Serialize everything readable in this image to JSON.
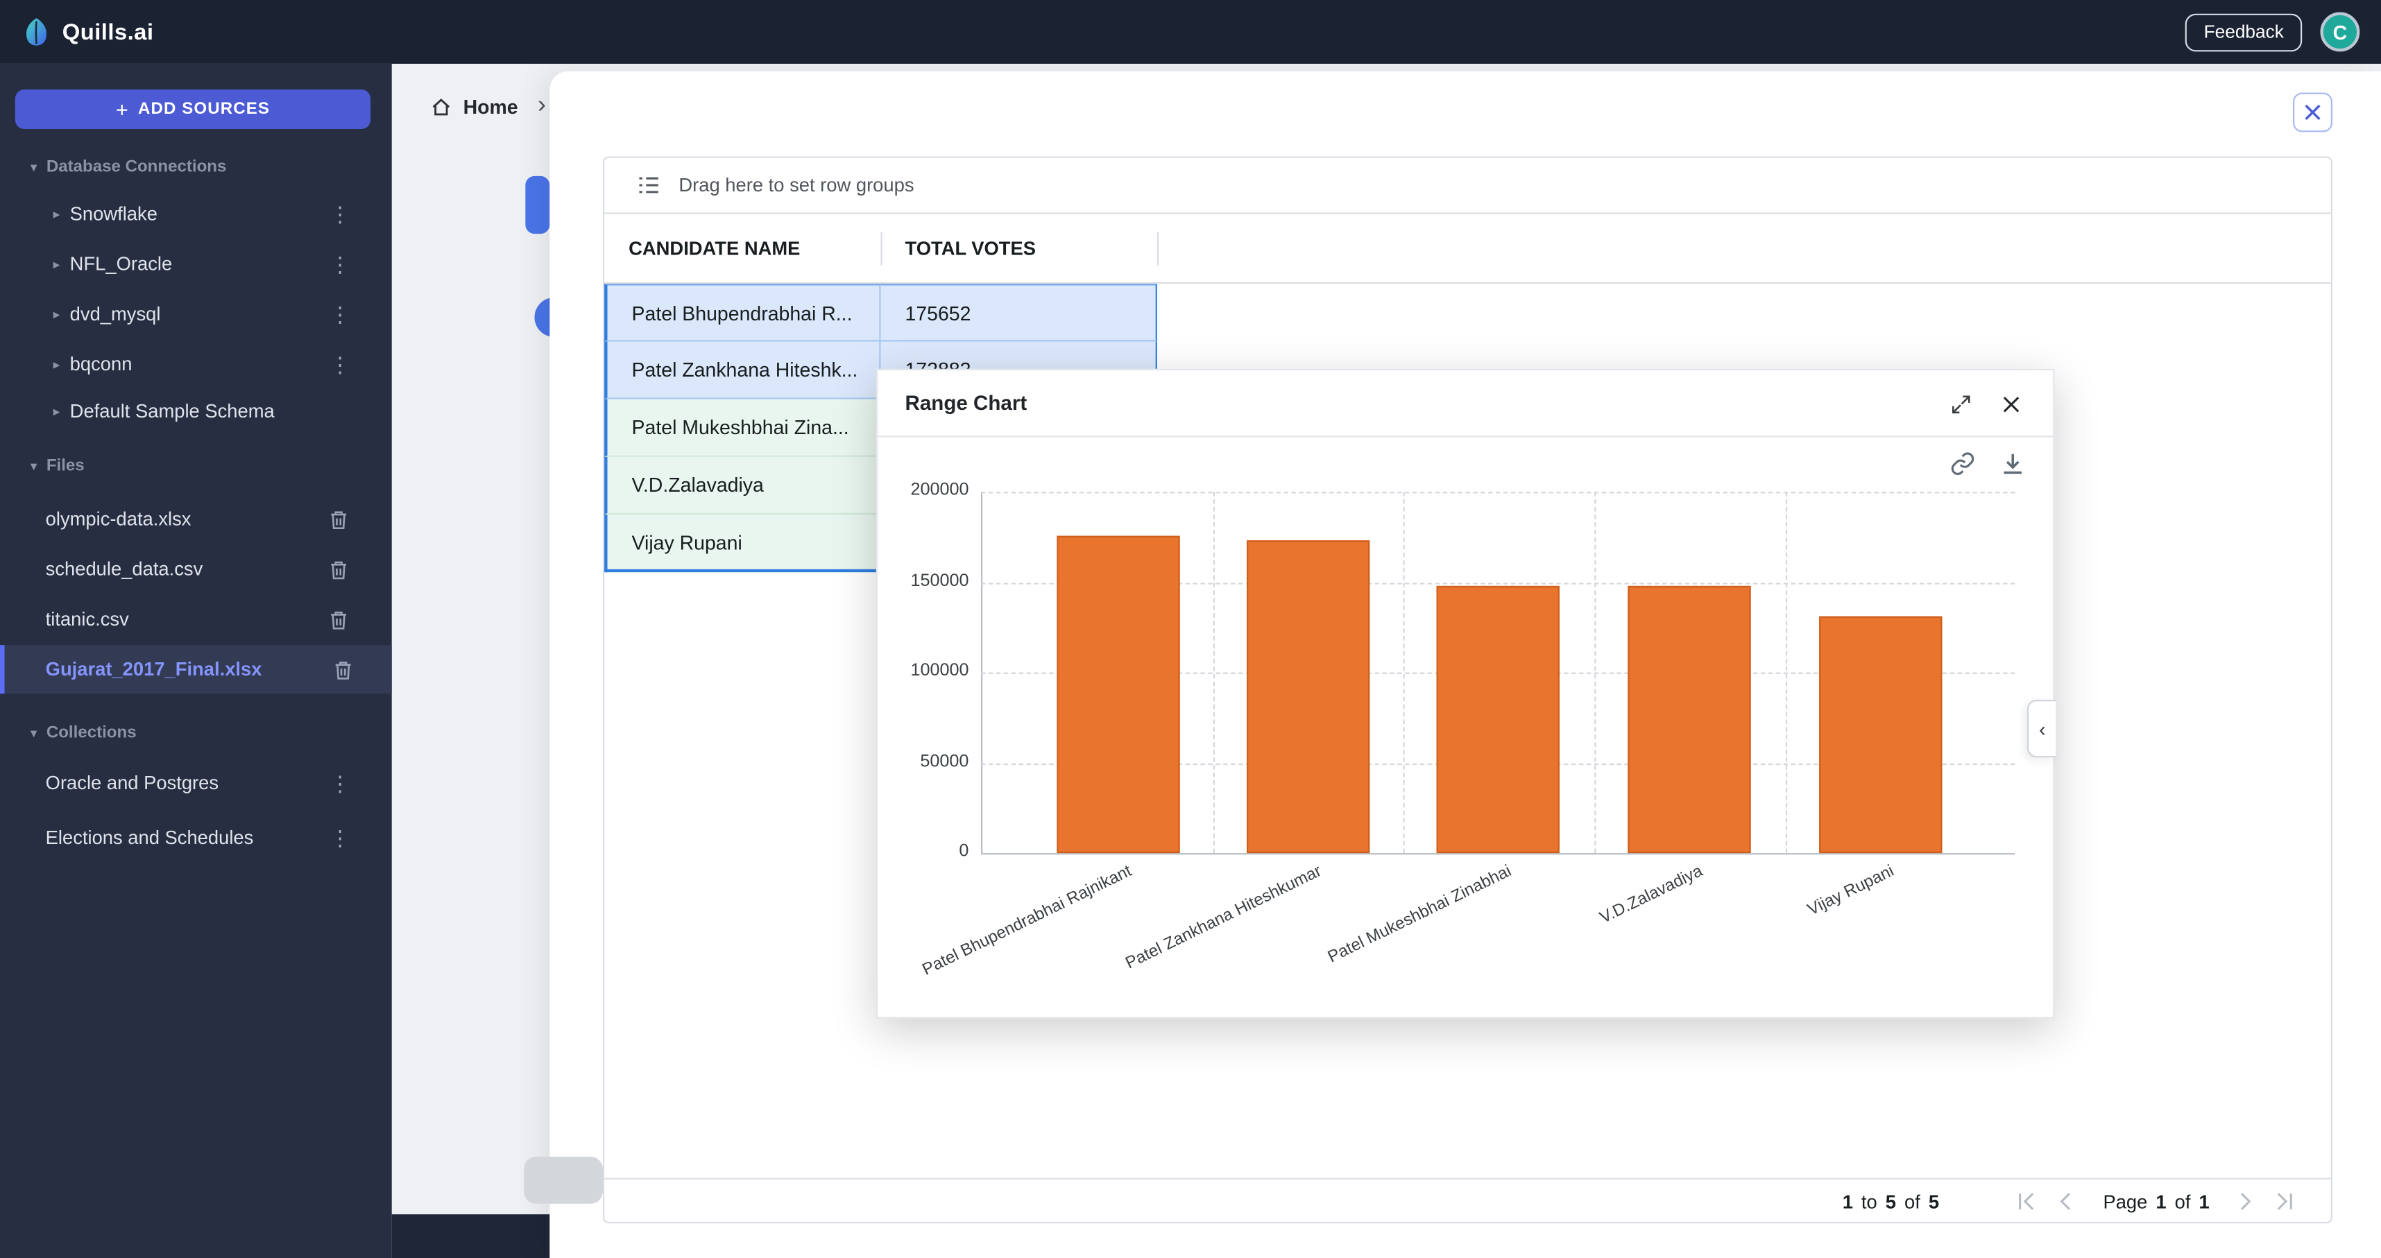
{
  "topbar": {
    "brand": "Quills.ai",
    "feedback_label": "Feedback",
    "avatar_initial": "C"
  },
  "sidebar": {
    "add_sources_label": "ADD SOURCES",
    "sections": [
      {
        "label": "Database Connections",
        "items": [
          {
            "label": "Snowflake"
          },
          {
            "label": "NFL_Oracle"
          },
          {
            "label": "dvd_mysql"
          },
          {
            "label": "bqconn"
          },
          {
            "label": "Default Sample Schema"
          }
        ]
      },
      {
        "label": "Files",
        "items": [
          {
            "label": "olympic-data.xlsx"
          },
          {
            "label": "schedule_data.csv"
          },
          {
            "label": "titanic.csv"
          },
          {
            "label": "Gujarat_2017_Final.xlsx",
            "selected": true
          }
        ]
      },
      {
        "label": "Collections",
        "items": [
          {
            "label": "Oracle and Postgres"
          },
          {
            "label": "Elections and Schedules"
          }
        ]
      }
    ]
  },
  "breadcrumb": {
    "home_label": "Home",
    "chevron": "›"
  },
  "grid": {
    "dropzone_label": "Drag here to set row groups",
    "columns": [
      {
        "label": "CANDIDATE NAME"
      },
      {
        "label": "TOTAL VOTES"
      }
    ],
    "rows": [
      {
        "candidate": "Patel Bhupendrabhai R...",
        "votes": "175652"
      },
      {
        "candidate": "Patel Zankhana Hiteshk...",
        "votes": "172882"
      },
      {
        "candidate": "Patel Mukeshbhai Zina...",
        "votes": ""
      },
      {
        "candidate": "V.D.Zalavadiya",
        "votes": ""
      },
      {
        "candidate": "Vijay Rupani",
        "votes": ""
      }
    ],
    "pagination": {
      "row_start": "1",
      "to_word": "to",
      "row_end": "5",
      "of_word": "of",
      "row_total": "5",
      "page_word": "Page",
      "page_current": "1",
      "page_of_word": "of",
      "page_total": "1"
    }
  },
  "chart_dialog": {
    "title": "Range Chart",
    "collapse_glyph": "‹"
  },
  "chart_data": {
    "type": "bar",
    "title": "Range Chart",
    "categories": [
      "Patel Bhupendrabhai Rajnikant",
      "Patel Zankhana Hiteshkumar",
      "Patel Mukeshbhai Zinabhai",
      "V.D.Zalavadiya",
      "Vijay Rupani"
    ],
    "values": [
      175652,
      172882,
      148000,
      147500,
      131000
    ],
    "xlabel": "",
    "ylabel": "",
    "ylim": [
      0,
      200000
    ],
    "yticks": [
      0,
      50000,
      100000,
      150000,
      200000
    ],
    "grid": "dashed",
    "legend": "none",
    "bar_color": "#e8742d"
  },
  "colors": {
    "topbar_bg": "#1b2232",
    "sidebar_bg": "#272e41",
    "accent_indigo": "#4c5bd4",
    "selected_file_text": "#8494fb",
    "bar_orange": "#e8742d",
    "range_blue_fill": "#dbe8fb",
    "range_green_fill": "#e9f6ef",
    "range_border_blue": "#2f7de1",
    "avatar_teal": "#1fa99b"
  }
}
